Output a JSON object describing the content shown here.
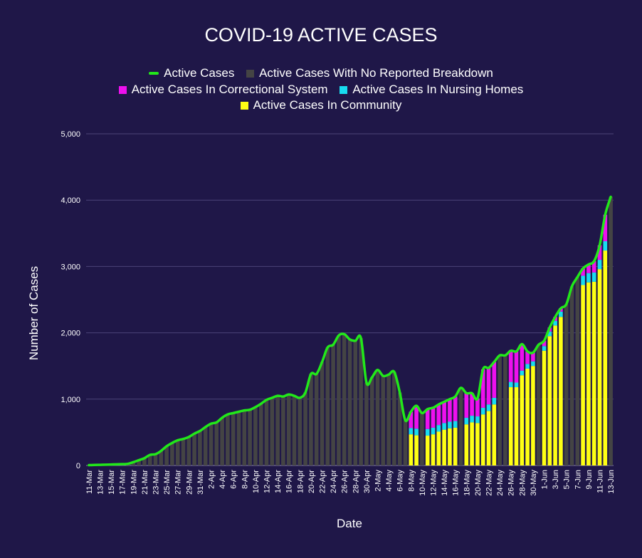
{
  "chart_data": {
    "type": "bar",
    "title": "COVID-19 ACTIVE CASES",
    "xlabel": "Date",
    "ylabel": "Number of Cases",
    "ylim": [
      0,
      5000
    ],
    "yticks": [
      0,
      1000,
      2000,
      3000,
      4000,
      5000
    ],
    "ytick_labels": [
      "0",
      "1,000",
      "2,000",
      "3,000",
      "4,000",
      "5,000"
    ],
    "grid": true,
    "legend": [
      {
        "name": "Active Cases",
        "color": "#22e81a",
        "kind": "line"
      },
      {
        "name": "Active Cases With No Reported Breakdown",
        "color": "#444444",
        "kind": "bar"
      },
      {
        "name": "Active Cases In Correctional System",
        "color": "#ee10ee",
        "kind": "bar"
      },
      {
        "name": "Active Cases In Nursing Homes",
        "color": "#18dcf0",
        "kind": "bar"
      },
      {
        "name": "Active Cases In Community",
        "color": "#ffff14",
        "kind": "bar"
      }
    ],
    "categories": [
      "11-Mar",
      "12-Mar",
      "13-Mar",
      "14-Mar",
      "15-Mar",
      "16-Mar",
      "17-Mar",
      "18-Mar",
      "19-Mar",
      "20-Mar",
      "21-Mar",
      "22-Mar",
      "23-Mar",
      "24-Mar",
      "25-Mar",
      "26-Mar",
      "27-Mar",
      "28-Mar",
      "29-Mar",
      "30-Mar",
      "31-Mar",
      "1-Apr",
      "2-Apr",
      "3-Apr",
      "4-Apr",
      "5-Apr",
      "6-Apr",
      "7-Apr",
      "8-Apr",
      "9-Apr",
      "10-Apr",
      "11-Apr",
      "12-Apr",
      "13-Apr",
      "14-Apr",
      "15-Apr",
      "16-Apr",
      "17-Apr",
      "18-Apr",
      "19-Apr",
      "20-Apr",
      "21-Apr",
      "22-Apr",
      "23-Apr",
      "24-Apr",
      "25-Apr",
      "26-Apr",
      "27-Apr",
      "28-Apr",
      "29-Apr",
      "30-Apr",
      "1-May",
      "2-May",
      "3-May",
      "4-May",
      "5-May",
      "6-May",
      "7-May",
      "8-May",
      "9-May",
      "10-May",
      "11-May",
      "12-May",
      "13-May",
      "14-May",
      "15-May",
      "16-May",
      "17-May",
      "18-May",
      "19-May",
      "20-May",
      "21-May",
      "22-May",
      "23-May",
      "24-May",
      "25-May",
      "26-May",
      "27-May",
      "28-May",
      "29-May",
      "30-May",
      "31-May",
      "1-Jun",
      "2-Jun",
      "3-Jun",
      "4-Jun",
      "5-Jun",
      "6-Jun",
      "7-Jun",
      "8-Jun",
      "9-Jun",
      "10-Jun",
      "11-Jun",
      "12-Jun",
      "13-Jun"
    ],
    "tick_labels_shown": [
      "11-Mar",
      "13-Mar",
      "15-Mar",
      "17-Mar",
      "19-Mar",
      "21-Mar",
      "23-Mar",
      "25-Mar",
      "27-Mar",
      "29-Mar",
      "31-Mar",
      "2-Apr",
      "4-Apr",
      "6-Apr",
      "8-Apr",
      "10-Apr",
      "12-Apr",
      "14-Apr",
      "16-Apr",
      "18-Apr",
      "20-Apr",
      "22-Apr",
      "24-Apr",
      "26-Apr",
      "28-Apr",
      "30-Apr",
      "2-May",
      "4-May",
      "6-May",
      "8-May",
      "10-May",
      "12-May",
      "14-May",
      "16-May",
      "18-May",
      "20-May",
      "22-May",
      "24-May",
      "26-May",
      "28-May",
      "30-May",
      "1-Jun",
      "3-Jun",
      "5-Jun",
      "7-Jun",
      "9-Jun",
      "11-Jun",
      "13-Jun"
    ],
    "series": [
      {
        "name": "Active Cases",
        "type": "line",
        "values": [
          5,
          8,
          10,
          12,
          15,
          18,
          20,
          25,
          50,
          80,
          110,
          160,
          170,
          220,
          290,
          340,
          380,
          400,
          430,
          480,
          520,
          580,
          630,
          650,
          720,
          770,
          790,
          810,
          830,
          840,
          880,
          930,
          990,
          1020,
          1050,
          1040,
          1070,
          1050,
          1020,
          1100,
          1380,
          1380,
          1560,
          1780,
          1820,
          1960,
          1980,
          1900,
          1880,
          1920,
          1250,
          1330,
          1440,
          1350,
          1370,
          1410,
          1100,
          680,
          810,
          900,
          790,
          850,
          870,
          920,
          960,
          1000,
          1040,
          1170,
          1090,
          1090,
          1010,
          1450,
          1470,
          1560,
          1660,
          1660,
          1730,
          1720,
          1830,
          1720,
          1700,
          1820,
          1880,
          2080,
          2240,
          2370,
          2430,
          2700,
          2840,
          2970,
          3030,
          3080,
          3320,
          3780,
          4050
        ]
      },
      {
        "name": "Active Cases With No Reported Breakdown",
        "values": [
          5,
          8,
          10,
          12,
          15,
          18,
          20,
          25,
          50,
          80,
          110,
          160,
          170,
          220,
          290,
          340,
          380,
          400,
          430,
          480,
          520,
          580,
          630,
          650,
          720,
          770,
          790,
          810,
          830,
          840,
          880,
          930,
          990,
          1020,
          1050,
          1040,
          1070,
          1050,
          1020,
          1100,
          1380,
          1380,
          1560,
          1780,
          1820,
          1960,
          1980,
          1900,
          1880,
          1920,
          1250,
          1330,
          1440,
          1350,
          1370,
          1410,
          1100,
          680,
          0,
          0,
          790,
          0,
          0,
          0,
          0,
          0,
          0,
          1170,
          0,
          0,
          0,
          0,
          0,
          0,
          1660,
          1660,
          0,
          0,
          0,
          0,
          0,
          1820,
          0,
          0,
          0,
          0,
          2430,
          2700,
          2840,
          0,
          0,
          0,
          0,
          0,
          4050
        ]
      },
      {
        "name": "Active Cases In Correctional System",
        "values": [
          0,
          0,
          0,
          0,
          0,
          0,
          0,
          0,
          0,
          0,
          0,
          0,
          0,
          0,
          0,
          0,
          0,
          0,
          0,
          0,
          0,
          0,
          0,
          0,
          0,
          0,
          0,
          0,
          0,
          0,
          0,
          0,
          0,
          0,
          0,
          0,
          0,
          0,
          0,
          0,
          0,
          0,
          0,
          0,
          0,
          0,
          0,
          0,
          0,
          0,
          0,
          0,
          0,
          0,
          0,
          0,
          0,
          0,
          245,
          345,
          0,
          300,
          300,
          310,
          320,
          340,
          370,
          0,
          370,
          340,
          270,
          580,
          550,
          540,
          0,
          0,
          480,
          470,
          400,
          190,
          130,
          0,
          80,
          60,
          60,
          50,
          0,
          0,
          0,
          110,
          130,
          170,
          220,
          400,
          0
        ]
      },
      {
        "name": "Active Cases In Nursing Homes",
        "values": [
          0,
          0,
          0,
          0,
          0,
          0,
          0,
          0,
          0,
          0,
          0,
          0,
          0,
          0,
          0,
          0,
          0,
          0,
          0,
          0,
          0,
          0,
          0,
          0,
          0,
          0,
          0,
          0,
          0,
          0,
          0,
          0,
          0,
          0,
          0,
          0,
          0,
          0,
          0,
          0,
          0,
          0,
          0,
          0,
          0,
          0,
          0,
          0,
          0,
          0,
          0,
          0,
          0,
          0,
          0,
          0,
          0,
          0,
          95,
          100,
          0,
          100,
          100,
          100,
          100,
          100,
          100,
          0,
          100,
          100,
          100,
          100,
          100,
          100,
          0,
          0,
          80,
          70,
          70,
          70,
          70,
          0,
          70,
          70,
          70,
          80,
          0,
          0,
          0,
          140,
          140,
          140,
          140,
          140,
          0
        ]
      },
      {
        "name": "Active Cases In Community",
        "values": [
          0,
          0,
          0,
          0,
          0,
          0,
          0,
          0,
          0,
          0,
          0,
          0,
          0,
          0,
          0,
          0,
          0,
          0,
          0,
          0,
          0,
          0,
          0,
          0,
          0,
          0,
          0,
          0,
          0,
          0,
          0,
          0,
          0,
          0,
          0,
          0,
          0,
          0,
          0,
          0,
          0,
          0,
          0,
          0,
          0,
          0,
          0,
          0,
          0,
          0,
          0,
          0,
          0,
          0,
          0,
          0,
          0,
          0,
          470,
          455,
          0,
          450,
          470,
          510,
          540,
          560,
          570,
          0,
          620,
          650,
          640,
          770,
          820,
          920,
          0,
          0,
          1180,
          1180,
          1360,
          1460,
          1500,
          0,
          1730,
          1950,
          2110,
          2240,
          0,
          0,
          0,
          2720,
          2760,
          2770,
          2960,
          3240,
          0
        ]
      }
    ]
  }
}
